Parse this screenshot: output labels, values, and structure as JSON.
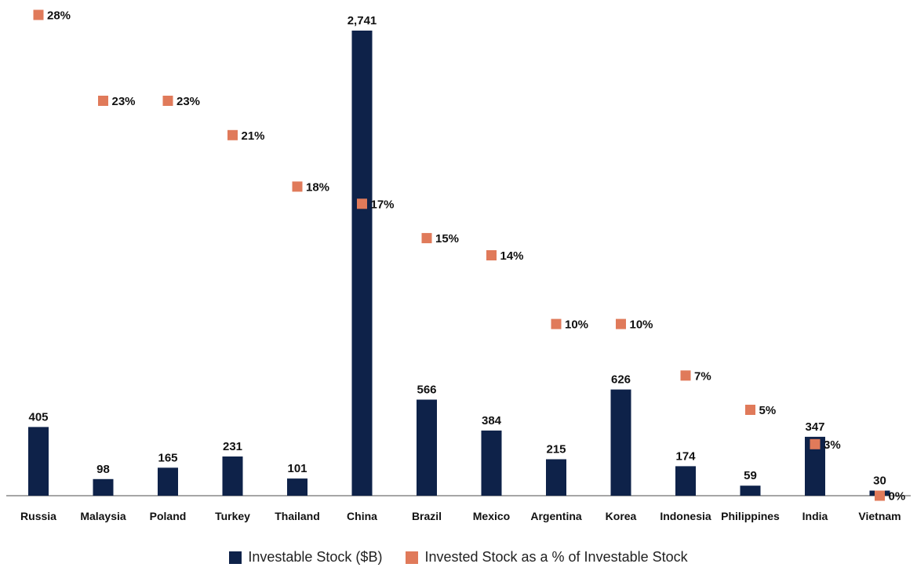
{
  "chart_data": {
    "type": "bar",
    "categories": [
      "Russia",
      "Malaysia",
      "Poland",
      "Turkey",
      "Thailand",
      "China",
      "Brazil",
      "Mexico",
      "Argentina",
      "Korea",
      "Indonesia",
      "Philippines",
      "India",
      "Vietnam"
    ],
    "series": [
      {
        "name": "Investable Stock ($B)",
        "kind": "bar",
        "color": "#0e2249",
        "values": [
          405,
          98,
          165,
          231,
          101,
          2741,
          566,
          384,
          215,
          626,
          174,
          59,
          347,
          30
        ],
        "labels": [
          "405",
          "98",
          "165",
          "231",
          "101",
          "2,741",
          "566",
          "384",
          "215",
          "626",
          "174",
          "59",
          "347",
          "30"
        ]
      },
      {
        "name": "Invested Stock as a % of Investable Stock",
        "kind": "marker",
        "color": "#e07a5a",
        "values": [
          28,
          23,
          23,
          21,
          18,
          17,
          15,
          14,
          10,
          10,
          7,
          5,
          3,
          0
        ],
        "labels": [
          "28%",
          "23%",
          "23%",
          "21%",
          "18%",
          "17%",
          "15%",
          "14%",
          "10%",
          "10%",
          "7%",
          "5%",
          "3%",
          "0%"
        ]
      }
    ],
    "ylim": [
      0,
      2741
    ],
    "y2lim": [
      0,
      28
    ],
    "grid": false,
    "legend_position": "bottom"
  },
  "legend": {
    "bar_label": "Investable Stock ($B)",
    "marker_label": "Invested Stock as a % of Investable Stock"
  }
}
